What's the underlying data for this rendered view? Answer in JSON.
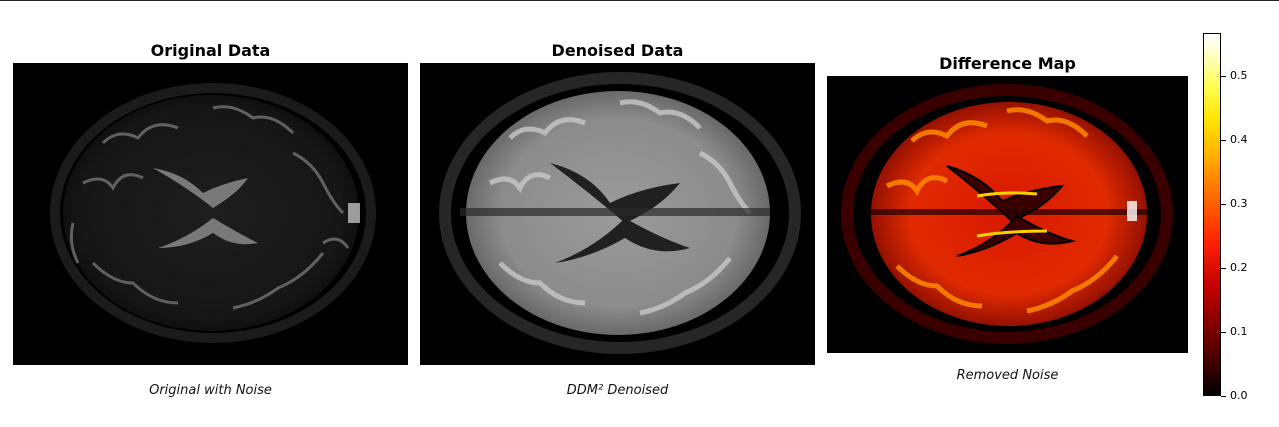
{
  "panels": [
    {
      "title": "Original Data",
      "caption": "Original with Noise"
    },
    {
      "title": "Denoised Data",
      "caption": "DDM² Denoised"
    },
    {
      "title": "Difference Map",
      "caption": "Removed Noise"
    }
  ],
  "colorbar": {
    "label": "",
    "colormap": "hot",
    "range": [
      0,
      0.57
    ],
    "ticks": [
      "0.0",
      "0.1",
      "0.2",
      "0.3",
      "0.4",
      "0.5"
    ]
  },
  "colors": {
    "background": "#ffffff",
    "image_background": "#000000"
  }
}
